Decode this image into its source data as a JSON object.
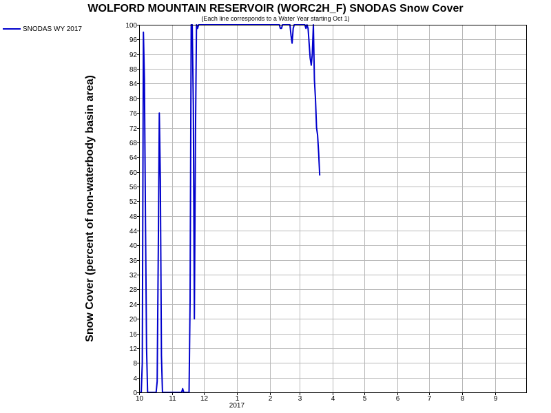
{
  "chart_data": {
    "type": "line",
    "title": "WOLFORD MOUNTAIN RESERVOIR (WORC2H_F) SNODAS Snow Cover",
    "subtitle": "(Each line corresponds to a Water Year starting Oct 1)",
    "ylabel": "Snow Cover (percent of non-waterbody basin area)",
    "xlabel": "",
    "ylim": [
      0,
      100
    ],
    "xlim": [
      "2016-10-01",
      "2017-10-01"
    ],
    "x_ticks": [
      {
        "date": "2016-10-01",
        "label": "10"
      },
      {
        "date": "2016-11-01",
        "label": "11"
      },
      {
        "date": "2016-12-01",
        "label": "12"
      },
      {
        "date": "2017-01-01",
        "label": "1"
      },
      {
        "date": "2017-02-01",
        "label": "2"
      },
      {
        "date": "2017-03-01",
        "label": "3"
      },
      {
        "date": "2017-04-01",
        "label": "4"
      },
      {
        "date": "2017-05-01",
        "label": "5"
      },
      {
        "date": "2017-06-01",
        "label": "6"
      },
      {
        "date": "2017-07-01",
        "label": "7"
      },
      {
        "date": "2017-08-01",
        "label": "8"
      },
      {
        "date": "2017-09-01",
        "label": "9"
      }
    ],
    "year_label": {
      "date": "2017-01-01",
      "label": "2017"
    },
    "y_ticks": [
      0,
      4,
      8,
      12,
      16,
      20,
      24,
      28,
      32,
      36,
      40,
      44,
      48,
      52,
      56,
      60,
      64,
      68,
      72,
      76,
      80,
      84,
      88,
      92,
      96,
      100
    ],
    "grid": true,
    "legend_position": "top-left",
    "series": [
      {
        "name": "SNODAS WY 2017",
        "color": "#0000cc",
        "points": [
          [
            "2016-10-01",
            0
          ],
          [
            "2016-10-03",
            0
          ],
          [
            "2016-10-04",
            8
          ],
          [
            "2016-10-05",
            98
          ],
          [
            "2016-10-06",
            85
          ],
          [
            "2016-10-07",
            45
          ],
          [
            "2016-10-08",
            12
          ],
          [
            "2016-10-09",
            0
          ],
          [
            "2016-10-15",
            0
          ],
          [
            "2016-10-17",
            0
          ],
          [
            "2016-10-18",
            3
          ],
          [
            "2016-10-19",
            38
          ],
          [
            "2016-10-20",
            76
          ],
          [
            "2016-10-21",
            58
          ],
          [
            "2016-10-22",
            10
          ],
          [
            "2016-10-23",
            0
          ],
          [
            "2016-11-10",
            0
          ],
          [
            "2016-11-11",
            1
          ],
          [
            "2016-11-12",
            0
          ],
          [
            "2016-11-17",
            0
          ],
          [
            "2016-11-18",
            25
          ],
          [
            "2016-11-19",
            100
          ],
          [
            "2016-11-20",
            100
          ],
          [
            "2016-11-21",
            78
          ],
          [
            "2016-11-22",
            20
          ],
          [
            "2016-11-23",
            70
          ],
          [
            "2016-11-24",
            100
          ],
          [
            "2016-11-25",
            99
          ],
          [
            "2016-11-26",
            100
          ],
          [
            "2017-02-10",
            100
          ],
          [
            "2017-02-11",
            99
          ],
          [
            "2017-02-12",
            99
          ],
          [
            "2017-02-13",
            100
          ],
          [
            "2017-02-20",
            100
          ],
          [
            "2017-02-21",
            97
          ],
          [
            "2017-02-22",
            95
          ],
          [
            "2017-02-23",
            99
          ],
          [
            "2017-02-24",
            100
          ],
          [
            "2017-03-06",
            100
          ],
          [
            "2017-03-07",
            99
          ],
          [
            "2017-03-08",
            100
          ],
          [
            "2017-03-09",
            99
          ],
          [
            "2017-03-10",
            95
          ],
          [
            "2017-03-11",
            91
          ],
          [
            "2017-03-12",
            89
          ],
          [
            "2017-03-13",
            92
          ],
          [
            "2017-03-14",
            100
          ],
          [
            "2017-03-15",
            85
          ],
          [
            "2017-03-16",
            80
          ],
          [
            "2017-03-17",
            72
          ],
          [
            "2017-03-18",
            70
          ],
          [
            "2017-03-19",
            65
          ],
          [
            "2017-03-20",
            59
          ]
        ]
      }
    ]
  }
}
